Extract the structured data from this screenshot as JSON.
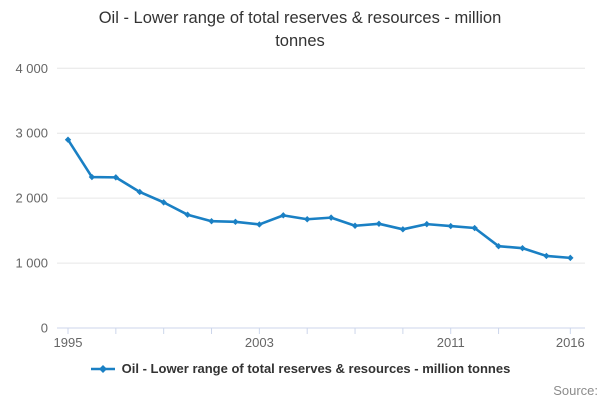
{
  "title_lines": [
    "Oil - Lower range of total reserves & resources - million",
    "tonnes"
  ],
  "title_full": "Oil - Lower range of total reserves & resources - million tonnes",
  "legend": {
    "label": "Oil - Lower range of total reserves & resources - million tonnes"
  },
  "source_label": "Source:",
  "colors": {
    "line": "#1a80c4",
    "grid": "#e6e6e6",
    "axis": "#ccd6eb",
    "axis_text": "#666666",
    "title_text": "#333333",
    "source_text": "#8c8c8c"
  },
  "chart_data": {
    "type": "line",
    "title": "Oil - Lower range of total reserves & resources - million tonnes",
    "xlabel": "",
    "ylabel": "",
    "grid": true,
    "legend_position": "bottom",
    "ylim": [
      0,
      4000
    ],
    "x": [
      1995,
      1996,
      1997,
      1998,
      1999,
      2000,
      2001,
      2002,
      2003,
      2004,
      2005,
      2006,
      2007,
      2008,
      2009,
      2010,
      2011,
      2012,
      2013,
      2014,
      2015,
      2016
    ],
    "series": [
      {
        "name": "Oil - Lower range of total reserves & resources - million tonnes",
        "values": [
          2900,
          2325,
          2320,
          2095,
          1935,
          1745,
          1645,
          1635,
          1595,
          1735,
          1675,
          1700,
          1575,
          1605,
          1520,
          1600,
          1570,
          1540,
          1260,
          1230,
          1110,
          1080
        ]
      }
    ],
    "y_ticks": {
      "values": [
        0,
        1000,
        2000,
        3000,
        4000
      ],
      "labels": [
        "0",
        "1 000",
        "2 000",
        "3 000",
        "4 000"
      ]
    },
    "x_tick_years": [
      1995,
      1997,
      1999,
      2001,
      2003,
      2005,
      2007,
      2009,
      2011,
      2013,
      2016
    ],
    "x_label_years": [
      "1995",
      "2003",
      "2011",
      "2016"
    ]
  }
}
